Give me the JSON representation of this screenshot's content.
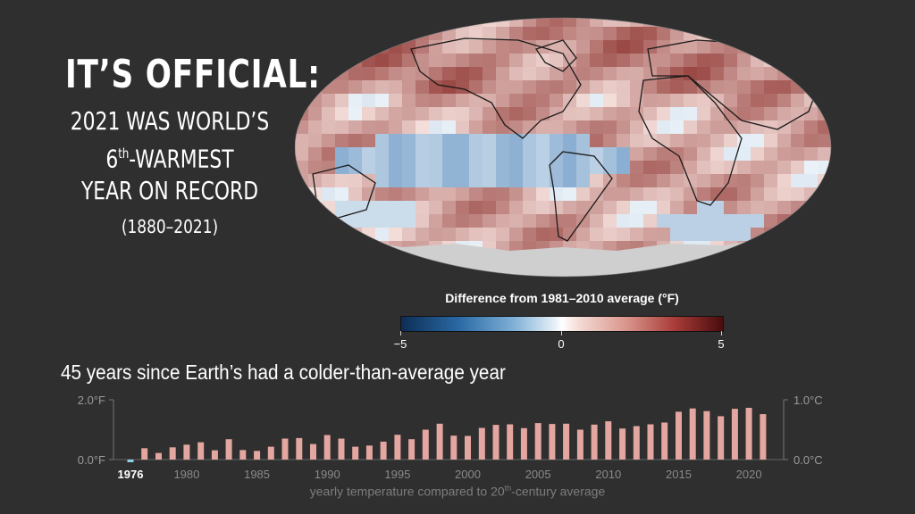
{
  "headline": {
    "line1": "IT’S OFFICIAL:",
    "line2": "2021 WAS WORLD’S",
    "line3_num": "6",
    "line3_sup": "th",
    "line3_rest": "-WARMEST",
    "line4": "YEAR ON RECORD",
    "years": "(1880–2021)"
  },
  "legend": {
    "title": "Difference from 1981–2010 average (°F)",
    "ticks": [
      "−5",
      "0",
      "5"
    ],
    "colors": {
      "cold": "#0d2d55",
      "neutral": "#ffffff",
      "warm": "#4a0c0e"
    }
  },
  "subhead": "45 years since Earth’s had a colder-than-average year",
  "caption": {
    "pre": "yearly temperature compared to 20",
    "sup": "th",
    "post": "-century average"
  },
  "colors": {
    "background": "#2f2f2f",
    "bar_warm": "#e3a6a0",
    "bar_cold": "#8fd0e4",
    "ocean_cold": "#c7dcea",
    "land_warm": "#d98d86",
    "antarctica": "#cfcfcf"
  },
  "chart_data": {
    "type": "bar",
    "categories": [
      1976,
      1977,
      1978,
      1979,
      1980,
      1981,
      1982,
      1983,
      1984,
      1985,
      1986,
      1987,
      1988,
      1989,
      1990,
      1991,
      1992,
      1993,
      1994,
      1995,
      1996,
      1997,
      1998,
      1999,
      2000,
      2001,
      2002,
      2003,
      2004,
      2005,
      2006,
      2007,
      2008,
      2009,
      2010,
      2011,
      2012,
      2013,
      2014,
      2015,
      2016,
      2017,
      2018,
      2019,
      2020,
      2021
    ],
    "values": [
      -0.05,
      0.38,
      0.22,
      0.41,
      0.5,
      0.58,
      0.31,
      0.68,
      0.32,
      0.29,
      0.43,
      0.7,
      0.72,
      0.52,
      0.82,
      0.7,
      0.43,
      0.47,
      0.6,
      0.83,
      0.68,
      1.0,
      1.2,
      0.8,
      0.79,
      1.06,
      1.16,
      1.18,
      1.05,
      1.22,
      1.19,
      1.2,
      1.0,
      1.17,
      1.28,
      1.04,
      1.12,
      1.18,
      1.24,
      1.6,
      1.71,
      1.62,
      1.45,
      1.7,
      1.73,
      1.52
    ],
    "y_left_ticks": [
      "2.0°F",
      "0.0°F"
    ],
    "y_right_ticks": [
      "1.0°C",
      "0.0°C"
    ],
    "x_tick_labels": [
      "1976",
      "1980",
      "1985",
      "1990",
      "1995",
      "2000",
      "2005",
      "2010",
      "2015",
      "2020"
    ],
    "highlight_label": "1976",
    "ylim": [
      0,
      2.0
    ],
    "grid": false
  }
}
